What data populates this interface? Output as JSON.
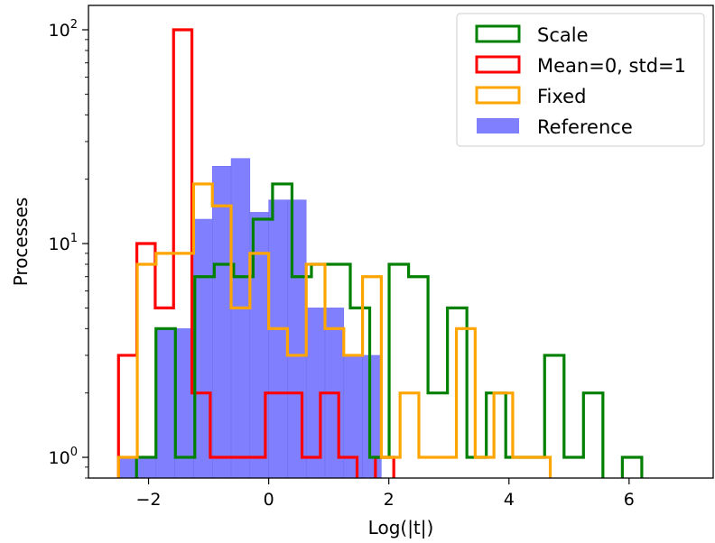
{
  "chart_data": {
    "type": "histogram",
    "title": "",
    "xlabel": "Log(|t|)",
    "ylabel": "Processes",
    "xlim": [
      -3.0,
      7.4
    ],
    "ylim": [
      0.8,
      130
    ],
    "yscale": "log",
    "x_ticks": [
      -2,
      0,
      2,
      4,
      6
    ],
    "x_tick_labels": [
      "−2",
      "0",
      "2",
      "4",
      "6"
    ],
    "y_ticks": [
      {
        "value": 1,
        "base": "10",
        "exp": "0"
      },
      {
        "value": 10,
        "base": "10",
        "exp": "1"
      },
      {
        "value": 100,
        "base": "10",
        "exp": "2"
      }
    ],
    "legend_position": "top-right",
    "series": [
      {
        "name": "Scale",
        "style": "step",
        "color": "#008000",
        "x_start": -2.2,
        "bin_width": 0.3235,
        "counts": [
          1,
          4,
          1,
          7,
          8,
          7,
          13,
          19,
          7,
          8,
          8,
          5,
          1,
          8,
          7,
          2,
          5,
          1,
          2,
          1,
          1,
          3,
          1,
          2,
          0,
          1
        ]
      },
      {
        "name": "Mean=0, std=1",
        "style": "step",
        "color": "#ff0000",
        "x_start": -2.5,
        "bin_width": 0.3055,
        "counts": [
          3,
          10,
          5,
          100,
          2,
          1,
          1,
          1,
          2,
          2,
          1,
          2,
          1,
          0,
          1
        ]
      },
      {
        "name": "Fixed",
        "style": "step",
        "color": "#ffa500",
        "x_start": -2.5,
        "bin_width": 0.3125,
        "counts": [
          1,
          8,
          9,
          9,
          19,
          15,
          5,
          9,
          4,
          3,
          8,
          4,
          3,
          7,
          1,
          2,
          1,
          1,
          4,
          1,
          2,
          1,
          1
        ]
      },
      {
        "name": "Reference",
        "style": "bar",
        "color": "#8080ff",
        "x_start": -2.5,
        "bin_width": 0.3125,
        "counts": [
          1,
          1,
          4,
          4,
          13,
          23,
          25,
          14,
          16,
          16,
          5,
          5,
          3,
          3
        ]
      }
    ]
  }
}
